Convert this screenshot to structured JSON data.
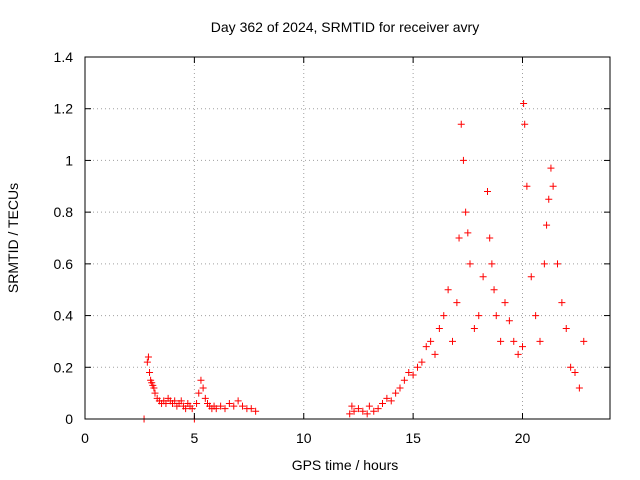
{
  "chart_data": {
    "type": "scatter",
    "title": "Day 362 of 2024, SRMTID for receiver avry",
    "xlabel": "GPS time / hours",
    "ylabel": "SRMTID / TECUs",
    "xlim": [
      0,
      24
    ],
    "ylim": [
      0,
      1.4
    ],
    "xticks": [
      0,
      5,
      10,
      15,
      20
    ],
    "xtick_labels": [
      "0",
      "5",
      "10",
      "15",
      "20"
    ],
    "yticks": [
      0,
      0.2,
      0.4,
      0.6,
      0.8,
      1.0,
      1.2,
      1.4
    ],
    "ytick_labels": [
      "0",
      "0.2",
      "0.4",
      "0.6",
      "0.8",
      "1",
      "1.2",
      "1.4"
    ],
    "grid": true,
    "marker": "+",
    "series": [
      {
        "name": "SRMTID",
        "color": "#ff0000",
        "x": [
          2.7,
          2.85,
          2.9,
          2.95,
          3.0,
          3.05,
          3.1,
          3.15,
          3.2,
          3.3,
          3.4,
          3.5,
          3.6,
          3.7,
          3.8,
          3.9,
          4.0,
          4.1,
          4.2,
          4.3,
          4.4,
          4.5,
          4.6,
          4.7,
          4.8,
          4.9,
          5.0,
          5.1,
          5.2,
          5.3,
          5.4,
          5.5,
          5.6,
          5.7,
          5.8,
          5.9,
          6.0,
          6.2,
          6.4,
          6.6,
          6.8,
          7.0,
          7.2,
          7.4,
          7.6,
          7.8,
          12.1,
          12.2,
          12.3,
          12.5,
          12.7,
          12.9,
          13.0,
          13.2,
          13.4,
          13.6,
          13.8,
          14.0,
          14.2,
          14.4,
          14.6,
          14.8,
          15.0,
          15.2,
          15.4,
          15.6,
          15.8,
          16.0,
          16.2,
          16.4,
          16.6,
          16.8,
          17.0,
          17.1,
          17.2,
          17.3,
          17.4,
          17.5,
          17.6,
          17.8,
          18.0,
          18.2,
          18.4,
          18.5,
          18.6,
          18.7,
          18.8,
          19.0,
          19.2,
          19.4,
          19.6,
          19.8,
          20.0,
          20.05,
          20.1,
          20.2,
          20.4,
          20.6,
          20.8,
          21.0,
          21.1,
          21.2,
          21.3,
          21.4,
          21.6,
          21.8,
          22.0,
          22.2,
          22.4,
          22.6,
          22.8
        ],
        "y": [
          0.0,
          0.22,
          0.24,
          0.18,
          0.15,
          0.14,
          0.13,
          0.12,
          0.1,
          0.08,
          0.07,
          0.06,
          0.07,
          0.06,
          0.08,
          0.07,
          0.06,
          0.07,
          0.05,
          0.06,
          0.07,
          0.05,
          0.04,
          0.06,
          0.05,
          0.04,
          0.0,
          0.06,
          0.1,
          0.15,
          0.12,
          0.08,
          0.06,
          0.05,
          0.04,
          0.05,
          0.04,
          0.05,
          0.04,
          0.06,
          0.05,
          0.07,
          0.05,
          0.04,
          0.04,
          0.03,
          0.02,
          0.05,
          0.03,
          0.04,
          0.03,
          0.02,
          0.05,
          0.03,
          0.04,
          0.06,
          0.08,
          0.07,
          0.1,
          0.12,
          0.15,
          0.18,
          0.17,
          0.2,
          0.22,
          0.28,
          0.3,
          0.25,
          0.35,
          0.4,
          0.5,
          0.3,
          0.45,
          0.7,
          1.14,
          1.0,
          0.8,
          0.72,
          0.6,
          0.35,
          0.4,
          0.55,
          0.88,
          0.7,
          0.6,
          0.5,
          0.4,
          0.3,
          0.45,
          0.38,
          0.3,
          0.25,
          0.28,
          1.22,
          1.14,
          0.9,
          0.55,
          0.4,
          0.3,
          0.6,
          0.75,
          0.85,
          0.97,
          0.9,
          0.6,
          0.45,
          0.35,
          0.2,
          0.18,
          0.12,
          0.3
        ]
      }
    ]
  }
}
